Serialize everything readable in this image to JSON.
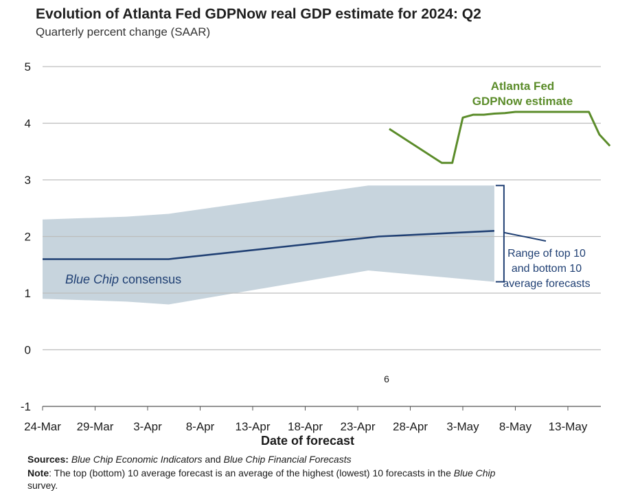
{
  "chart_data": {
    "type": "line",
    "title": "Evolution of Atlanta Fed GDPNow real GDP estimate for 2024: Q2",
    "subtitle": "Quarterly percent change (SAAR)",
    "xlabel": "Date of forecast",
    "ylabel": "",
    "ylim": [
      -1,
      5
    ],
    "yticks": [
      "5",
      "4",
      "3",
      "2",
      "1",
      "0",
      "-1"
    ],
    "xlim": [
      "2024-03-24",
      "2024-05-19"
    ],
    "xticks": [
      "24-Mar",
      "29-Mar",
      "3-Apr",
      "8-Apr",
      "13-Apr",
      "18-Apr",
      "23-Apr",
      "28-Apr",
      "3-May",
      "8-May",
      "13-May"
    ],
    "grid": true,
    "series": [
      {
        "name": "Atlanta Fed GDPNow estimate",
        "color": "#5b8c2a",
        "x": [
          "2024-04-26",
          "2024-05-01",
          "2024-05-02",
          "2024-05-03",
          "2024-05-04",
          "2024-05-05",
          "2024-05-06",
          "2024-05-07",
          "2024-05-08",
          "2024-05-09",
          "2024-05-10",
          "2024-05-11",
          "2024-05-12",
          "2024-05-13",
          "2024-05-14",
          "2024-05-15",
          "2024-05-16",
          "2024-05-17"
        ],
        "values": [
          3.9,
          3.3,
          3.3,
          4.1,
          4.15,
          4.15,
          4.17,
          4.18,
          4.2,
          4.2,
          4.2,
          4.2,
          4.2,
          4.2,
          4.2,
          4.2,
          3.8,
          3.6
        ]
      },
      {
        "name": "Blue Chip consensus",
        "color": "#1f3f73",
        "x": [
          "2024-03-24",
          "2024-04-05",
          "2024-04-15",
          "2024-04-25",
          "2024-05-06"
        ],
        "values": [
          1.6,
          1.6,
          1.8,
          2.0,
          2.1
        ]
      }
    ],
    "band": {
      "name": "Range of top 10 and bottom 10 average forecasts",
      "color": "#c7d4dd",
      "x": [
        "2024-03-24",
        "2024-04-01",
        "2024-04-05",
        "2024-04-24",
        "2024-05-06"
      ],
      "upper": [
        2.3,
        2.35,
        2.4,
        2.9,
        2.9
      ],
      "lower": [
        0.9,
        0.85,
        0.8,
        1.4,
        1.2
      ]
    },
    "annotations": {
      "gdpnow_label": [
        "Atlanta Fed",
        "GDPNow estimate"
      ],
      "consensus_label_italic": "Blue Chip",
      "consensus_label_rest": " consensus",
      "range_label": [
        "Range of top 10",
        "and bottom 10",
        "average forecasts"
      ],
      "stray_mark": "6"
    }
  },
  "footnotes": {
    "sources_label": "Sources:",
    "sources_italic_1": "Blue Chip Economic Indicators",
    "sources_and": "and",
    "sources_italic_2": "Blue Chip Financial Forecasts",
    "note_label": "Note",
    "note_text": ": The top (bottom) 10 average forecast is an average of the highest (lowest) 10 forecasts in the",
    "note_italic": "Blue Chip",
    "note_end": "survey."
  }
}
